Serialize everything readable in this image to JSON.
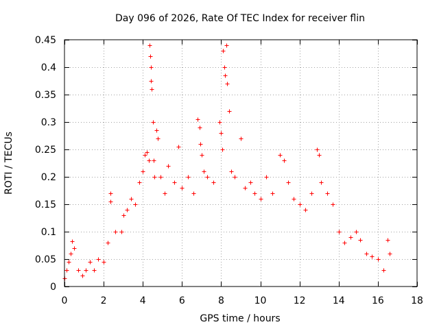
{
  "chart_data": {
    "type": "scatter",
    "title": "Day 096 of 2026, Rate Of TEC Index for receiver flin",
    "xlabel": "GPS time / hours",
    "ylabel": "ROTI / TECUs",
    "xlim": [
      0,
      18
    ],
    "ylim": [
      0,
      0.45
    ],
    "xticks": [
      0,
      2,
      4,
      6,
      8,
      10,
      12,
      14,
      16,
      18
    ],
    "yticks": [
      0,
      0.05,
      0.1,
      0.15,
      0.2,
      0.25,
      0.3,
      0.35,
      0.4,
      0.45
    ],
    "xtick_labels": [
      "0",
      "2",
      "4",
      "6",
      "8",
      "10",
      "12",
      "14",
      "16",
      "18"
    ],
    "ytick_labels": [
      "0",
      "0.05",
      "0.1",
      "0.15",
      "0.2",
      "0.25",
      "0.3",
      "0.35",
      "0.4",
      "0.45"
    ],
    "grid": true,
    "marker": "+",
    "series": [
      {
        "name": "ROTI",
        "color": "#ff0000",
        "points": [
          [
            0.0,
            0.015
          ],
          [
            0.1,
            0.03
          ],
          [
            0.2,
            0.045
          ],
          [
            0.3,
            0.06
          ],
          [
            0.4,
            0.083
          ],
          [
            0.5,
            0.07
          ],
          [
            0.7,
            0.03
          ],
          [
            0.9,
            0.02
          ],
          [
            1.1,
            0.03
          ],
          [
            1.3,
            0.045
          ],
          [
            1.5,
            0.03
          ],
          [
            1.7,
            0.05
          ],
          [
            2.0,
            0.045
          ],
          [
            2.2,
            0.08
          ],
          [
            2.35,
            0.17
          ],
          [
            2.35,
            0.155
          ],
          [
            2.6,
            0.1
          ],
          [
            2.9,
            0.1
          ],
          [
            3.0,
            0.13
          ],
          [
            3.2,
            0.14
          ],
          [
            3.4,
            0.16
          ],
          [
            3.6,
            0.15
          ],
          [
            3.8,
            0.19
          ],
          [
            4.0,
            0.21
          ],
          [
            4.1,
            0.24
          ],
          [
            4.2,
            0.245
          ],
          [
            4.3,
            0.23
          ],
          [
            4.35,
            0.44
          ],
          [
            4.38,
            0.42
          ],
          [
            4.4,
            0.4
          ],
          [
            4.42,
            0.375
          ],
          [
            4.45,
            0.36
          ],
          [
            4.5,
            0.3
          ],
          [
            4.55,
            0.23
          ],
          [
            4.6,
            0.2
          ],
          [
            4.7,
            0.285
          ],
          [
            4.75,
            0.27
          ],
          [
            4.9,
            0.2
          ],
          [
            5.1,
            0.17
          ],
          [
            5.3,
            0.22
          ],
          [
            5.6,
            0.19
          ],
          [
            5.8,
            0.255
          ],
          [
            6.0,
            0.18
          ],
          [
            6.3,
            0.2
          ],
          [
            6.6,
            0.17
          ],
          [
            6.8,
            0.305
          ],
          [
            6.9,
            0.29
          ],
          [
            6.95,
            0.26
          ],
          [
            7.0,
            0.24
          ],
          [
            7.1,
            0.21
          ],
          [
            7.3,
            0.2
          ],
          [
            7.6,
            0.19
          ],
          [
            7.9,
            0.3
          ],
          [
            8.0,
            0.28
          ],
          [
            8.05,
            0.25
          ],
          [
            8.1,
            0.43
          ],
          [
            8.15,
            0.4
          ],
          [
            8.2,
            0.385
          ],
          [
            8.25,
            0.44
          ],
          [
            8.3,
            0.37
          ],
          [
            8.4,
            0.32
          ],
          [
            8.5,
            0.21
          ],
          [
            8.7,
            0.2
          ],
          [
            9.0,
            0.27
          ],
          [
            9.2,
            0.18
          ],
          [
            9.5,
            0.19
          ],
          [
            9.7,
            0.17
          ],
          [
            10.0,
            0.16
          ],
          [
            10.3,
            0.2
          ],
          [
            10.6,
            0.17
          ],
          [
            11.0,
            0.24
          ],
          [
            11.2,
            0.23
          ],
          [
            11.4,
            0.19
          ],
          [
            11.7,
            0.16
          ],
          [
            12.0,
            0.15
          ],
          [
            12.3,
            0.14
          ],
          [
            12.6,
            0.17
          ],
          [
            12.9,
            0.25
          ],
          [
            13.0,
            0.24
          ],
          [
            13.1,
            0.19
          ],
          [
            13.4,
            0.17
          ],
          [
            13.7,
            0.15
          ],
          [
            14.0,
            0.1
          ],
          [
            14.3,
            0.08
          ],
          [
            14.6,
            0.09
          ],
          [
            14.9,
            0.1
          ],
          [
            15.1,
            0.085
          ],
          [
            15.4,
            0.06
          ],
          [
            15.7,
            0.055
          ],
          [
            16.0,
            0.05
          ],
          [
            16.3,
            0.03
          ],
          [
            16.5,
            0.085
          ],
          [
            16.6,
            0.06
          ]
        ]
      }
    ]
  }
}
